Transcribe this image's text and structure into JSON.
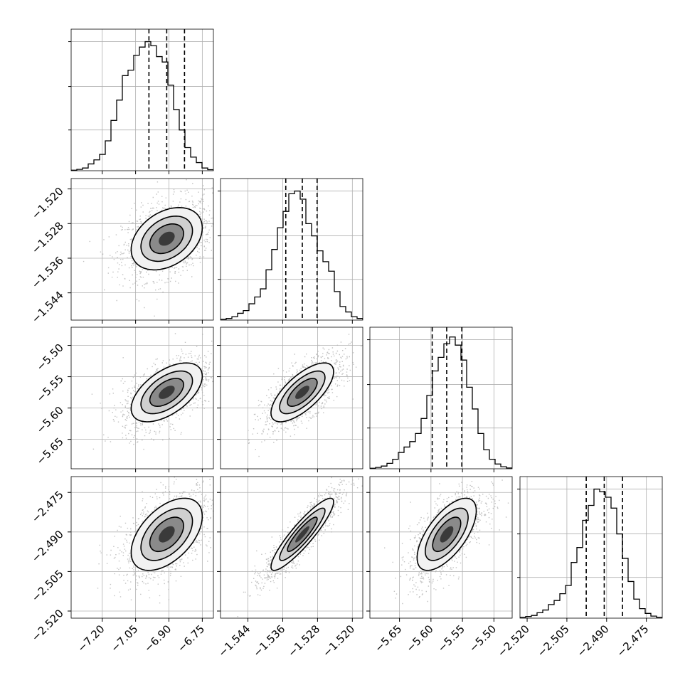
{
  "chart_data": {
    "type": "corner",
    "parameters": [
      {
        "index": 0,
        "range": [
          -7.34,
          -6.7
        ],
        "quantiles": [
          -6.99,
          -6.91,
          -6.83
        ],
        "ticks": [
          {
            "v": -7.2,
            "label": "−7.20"
          },
          {
            "v": -7.05,
            "label": "−7.05"
          },
          {
            "v": -6.9,
            "label": "−6.90"
          },
          {
            "v": -6.75,
            "label": "−6.75"
          }
        ],
        "histogram": [
          0.004,
          0.01,
          0.02,
          0.05,
          0.08,
          0.12,
          0.22,
          0.37,
          0.52,
          0.7,
          0.74,
          0.85,
          0.91,
          0.95,
          0.92,
          0.84,
          0.8,
          0.63,
          0.45,
          0.3,
          0.17,
          0.1,
          0.06,
          0.02,
          0.008
        ]
      },
      {
        "index": 1,
        "range": [
          -1.5503,
          -1.5176
        ],
        "quantiles": [
          -1.5353,
          -1.5315,
          -1.5281
        ],
        "ticks": [
          {
            "v": -1.544,
            "label": "−1.544"
          },
          {
            "v": -1.536,
            "label": "−1.536"
          },
          {
            "v": -1.528,
            "label": "−1.528"
          },
          {
            "v": -1.52,
            "label": "−1.520"
          }
        ],
        "histogram": [
          0.006,
          0.012,
          0.025,
          0.05,
          0.07,
          0.12,
          0.17,
          0.23,
          0.37,
          0.52,
          0.68,
          0.8,
          0.93,
          0.95,
          0.89,
          0.71,
          0.62,
          0.51,
          0.43,
          0.36,
          0.21,
          0.1,
          0.06,
          0.025,
          0.012
        ]
      },
      {
        "index": 2,
        "range": [
          -5.697,
          -5.471
        ],
        "quantiles": [
          -5.598,
          -5.575,
          -5.551
        ],
        "ticks": [
          {
            "v": -5.65,
            "label": "−5.65"
          },
          {
            "v": -5.6,
            "label": "−5.60"
          },
          {
            "v": -5.55,
            "label": "−5.55"
          },
          {
            "v": -5.5,
            "label": "−5.50"
          }
        ],
        "histogram": [
          0.004,
          0.01,
          0.02,
          0.04,
          0.07,
          0.12,
          0.16,
          0.2,
          0.26,
          0.37,
          0.54,
          0.72,
          0.82,
          0.92,
          0.97,
          0.91,
          0.8,
          0.6,
          0.44,
          0.26,
          0.14,
          0.07,
          0.035,
          0.015,
          0.006
        ]
      },
      {
        "index": 3,
        "range": [
          -2.5227,
          -2.469
        ],
        "quantiles": [
          -2.4977,
          -2.4909,
          -2.484
        ],
        "ticks": [
          {
            "v": -2.52,
            "label": "−2.520"
          },
          {
            "v": -2.505,
            "label": "−2.505"
          },
          {
            "v": -2.49,
            "label": "−2.490"
          },
          {
            "v": -2.475,
            "label": "−2.475"
          }
        ],
        "histogram": [
          0.006,
          0.012,
          0.02,
          0.04,
          0.06,
          0.1,
          0.13,
          0.18,
          0.24,
          0.41,
          0.52,
          0.72,
          0.83,
          0.95,
          0.93,
          0.89,
          0.81,
          0.62,
          0.44,
          0.27,
          0.14,
          0.07,
          0.035,
          0.015,
          0.006
        ]
      }
    ],
    "correlations": [
      {
        "i": 0,
        "j": 1,
        "rho": 0.35
      },
      {
        "i": 0,
        "j": 2,
        "rho": 0.55
      },
      {
        "i": 0,
        "j": 3,
        "rho": 0.5
      },
      {
        "i": 1,
        "j": 2,
        "rho": 0.7
      },
      {
        "i": 1,
        "j": 3,
        "rho": 0.9
      },
      {
        "i": 2,
        "j": 3,
        "rho": 0.65
      }
    ],
    "title": "",
    "axis_labels": [],
    "grid": true,
    "colors": {
      "scatter": "#b3b3b3",
      "contour": "#000000",
      "hist": "#000000",
      "density_dark": "#000000",
      "density_light": "#f2f2f2"
    }
  }
}
